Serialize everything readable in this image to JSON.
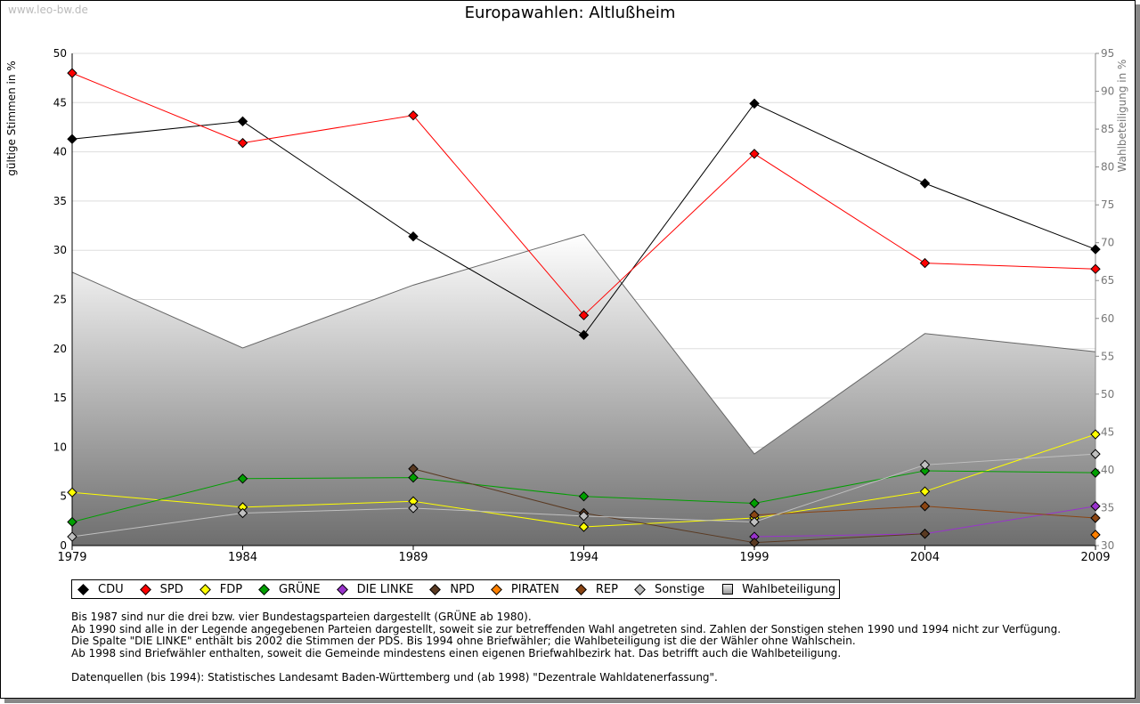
{
  "watermark": "www.leo-bw.de",
  "chart_data": {
    "type": "line",
    "title": "Europawahlen: Altlußheim",
    "ylabel": "gültige Stimmen in %",
    "y2label": "Wahlbeteiligung in %",
    "ylim": [
      0,
      50
    ],
    "y2lim": [
      30,
      95
    ],
    "x": [
      1979,
      1984,
      1989,
      1994,
      1999,
      2004,
      2009
    ],
    "yticks": [
      0,
      5,
      10,
      15,
      20,
      25,
      30,
      35,
      40,
      45,
      50
    ],
    "y2ticks": [
      30,
      35,
      40,
      45,
      50,
      55,
      60,
      65,
      70,
      75,
      80,
      85,
      90,
      95
    ],
    "series": [
      {
        "name": "CDU",
        "color": "#000000",
        "values": [
          41.3,
          43.1,
          31.4,
          21.4,
          44.9,
          36.8,
          30.1
        ]
      },
      {
        "name": "SPD",
        "color": "#ff0000",
        "values": [
          48.0,
          40.9,
          43.7,
          23.4,
          39.8,
          28.7,
          28.1
        ]
      },
      {
        "name": "FDP",
        "color": "#ffff00",
        "values": [
          5.4,
          3.9,
          4.5,
          1.9,
          2.8,
          5.5,
          11.3
        ]
      },
      {
        "name": "GRÜNE",
        "color": "#00a000",
        "values": [
          2.4,
          6.8,
          6.9,
          5.0,
          4.3,
          7.6,
          7.4
        ]
      },
      {
        "name": "DIE LINKE",
        "color": "#9933cc",
        "values": [
          null,
          null,
          null,
          null,
          0.9,
          1.2,
          4.0
        ]
      },
      {
        "name": "NPD",
        "color": "#5a3a22",
        "values": [
          null,
          null,
          7.8,
          3.3,
          0.3,
          1.2,
          null
        ]
      },
      {
        "name": "PIRATEN",
        "color": "#ff8000",
        "values": [
          null,
          null,
          null,
          null,
          null,
          null,
          1.1
        ]
      },
      {
        "name": "REP",
        "color": "#8b4513",
        "values": [
          null,
          null,
          null,
          null,
          3.1,
          4.0,
          2.8
        ]
      },
      {
        "name": "Sonstige",
        "color": "#c0c0c0",
        "values": [
          0.9,
          3.3,
          3.8,
          3.0,
          2.4,
          8.2,
          9.3
        ]
      }
    ],
    "turnout": {
      "name": "Wahlbeteiligung",
      "values": [
        66.1,
        56.1,
        64.4,
        71.1,
        42.1,
        58.0,
        55.6
      ]
    }
  },
  "notes": [
    "Bis 1987 sind nur die drei bzw. vier Bundestagsparteien dargestellt (GRÜNE ab 1980).",
    "Ab 1990 sind alle in der Legende angegebenen Parteien dargestellt, soweit sie zur betreffenden Wahl angetreten sind. Zahlen der Sonstigen stehen 1990 und 1994 nicht zur Verfügung.",
    "Die Spalte \"DIE LINKE\" enthält bis 2002 die Stimmen der PDS. Bis 1994 ohne Briefwähler; die Wahlbeteiligung ist die der Wähler ohne Wahlschein.",
    "Ab 1998 sind Briefwähler enthalten, soweit die Gemeinde mindestens einen eigenen Briefwahlbezirk hat. Das betrifft auch die Wahlbeteiligung.",
    "",
    "Datenquellen (bis 1994): Statistisches Landesamt Baden-Württemberg und (ab 1998) \"Dezentrale Wahldatenerfassung\"."
  ]
}
